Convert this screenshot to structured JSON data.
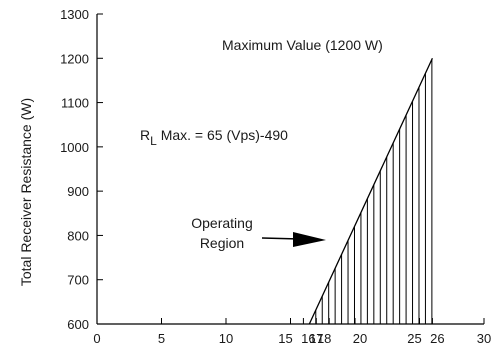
{
  "chart_data": {
    "type": "line",
    "ylabel": "Total Receiver Resistance (W)",
    "xlabel": "",
    "xlim": [
      0,
      30
    ],
    "ylim": [
      600,
      1300
    ],
    "xticks": [
      0,
      5,
      10,
      15,
      16,
      17,
      18,
      20,
      25,
      26,
      30
    ],
    "yticks": [
      600,
      700,
      800,
      900,
      1000,
      1100,
      1200,
      1300
    ],
    "grid": false,
    "series": [
      {
        "x": [
          16.46,
          26
        ],
        "y": [
          600,
          1200
        ]
      }
    ],
    "region": {
      "x_start": 16.46,
      "x_end": 26,
      "hatch": "vertical"
    },
    "annotations": {
      "max_value": "Maximum Value (1200 W)",
      "formula_r": "R",
      "formula_sub": "L",
      "formula_rest": " Max. = 65 (Vps)-490",
      "operating_line1": "Operating",
      "operating_line2": "Region"
    }
  }
}
